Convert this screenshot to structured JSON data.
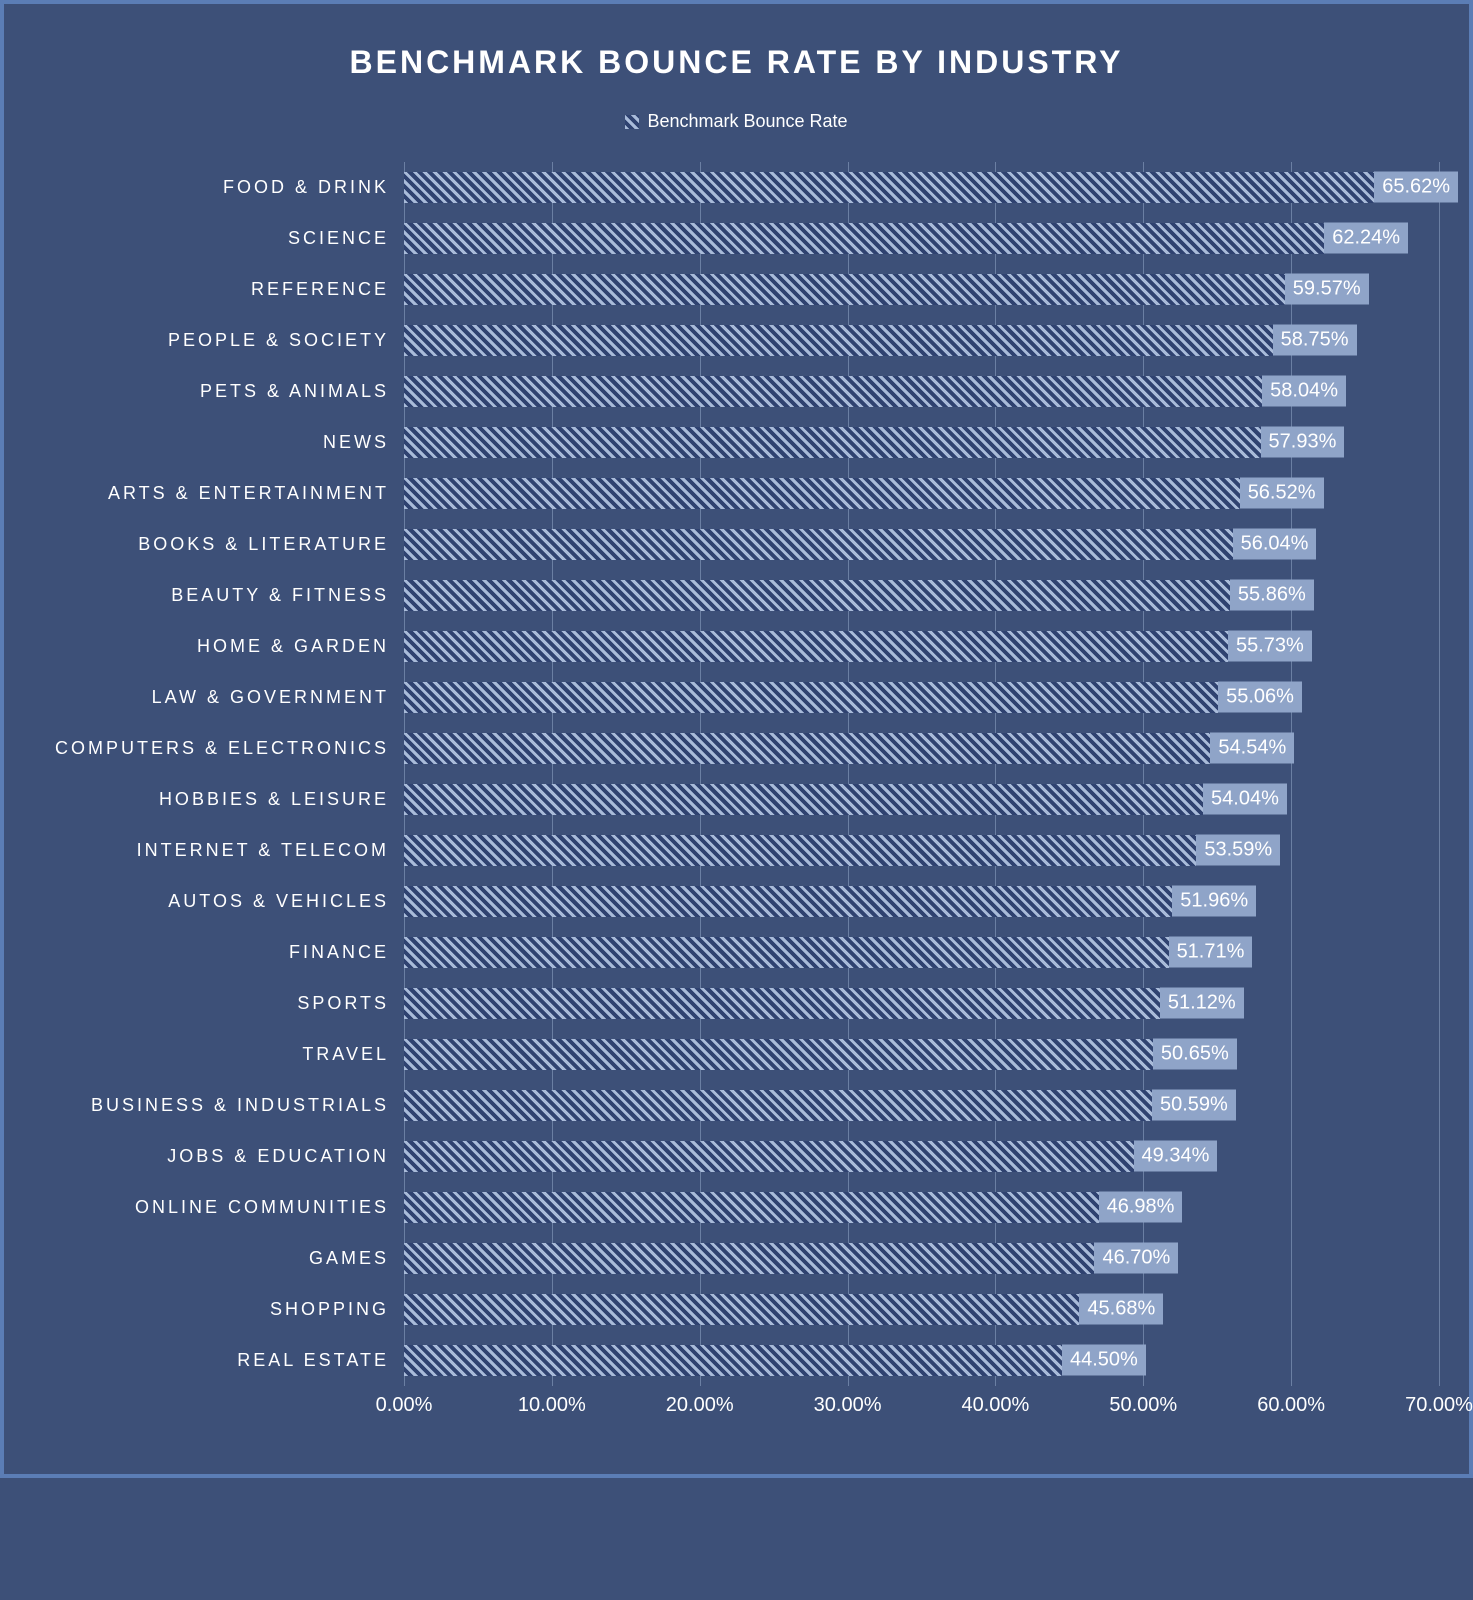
{
  "chart": {
    "type": "bar-horizontal",
    "title": "BENCHMARK BOUNCE RATE BY INDUSTRY",
    "title_fontsize": 32,
    "title_color": "#ffffff",
    "background_color": "#3d5078",
    "border_color": "#5b7db5",
    "legend_label": "Benchmark Bounce Rate",
    "legend_fontsize": 18,
    "label_fontsize": 18,
    "label_color": "#ffffff",
    "value_label_fontsize": 20,
    "value_label_bg": "#8fa4c8",
    "value_label_color": "#ffffff",
    "grid_color": "#6b7fa3",
    "bar_pattern_fg": "#a9bbd9",
    "bar_pattern_bg": "#2f4270",
    "xlim": [
      0,
      70
    ],
    "xtick_step": 10,
    "xticks": [
      "0.00%",
      "10.00%",
      "20.00%",
      "30.00%",
      "40.00%",
      "50.00%",
      "60.00%",
      "70.00%"
    ],
    "categories": [
      {
        "label": "FOOD & DRINK",
        "value": 65.62,
        "value_label": "65.62%"
      },
      {
        "label": "SCIENCE",
        "value": 62.24,
        "value_label": "62.24%"
      },
      {
        "label": "REFERENCE",
        "value": 59.57,
        "value_label": "59.57%"
      },
      {
        "label": "PEOPLE & SOCIETY",
        "value": 58.75,
        "value_label": "58.75%"
      },
      {
        "label": "PETS & ANIMALS",
        "value": 58.04,
        "value_label": "58.04%"
      },
      {
        "label": "NEWS",
        "value": 57.93,
        "value_label": "57.93%"
      },
      {
        "label": "ARTS & ENTERTAINMENT",
        "value": 56.52,
        "value_label": "56.52%"
      },
      {
        "label": "BOOKS & LITERATURE",
        "value": 56.04,
        "value_label": "56.04%"
      },
      {
        "label": "BEAUTY & FITNESS",
        "value": 55.86,
        "value_label": "55.86%"
      },
      {
        "label": "HOME & GARDEN",
        "value": 55.73,
        "value_label": "55.73%"
      },
      {
        "label": "LAW & GOVERNMENT",
        "value": 55.06,
        "value_label": "55.06%"
      },
      {
        "label": "COMPUTERS & ELECTRONICS",
        "value": 54.54,
        "value_label": "54.54%"
      },
      {
        "label": "HOBBIES & LEISURE",
        "value": 54.04,
        "value_label": "54.04%"
      },
      {
        "label": "INTERNET & TELECOM",
        "value": 53.59,
        "value_label": "53.59%"
      },
      {
        "label": "AUTOS & VEHICLES",
        "value": 51.96,
        "value_label": "51.96%"
      },
      {
        "label": "FINANCE",
        "value": 51.71,
        "value_label": "51.71%"
      },
      {
        "label": "SPORTS",
        "value": 51.12,
        "value_label": "51.12%"
      },
      {
        "label": "TRAVEL",
        "value": 50.65,
        "value_label": "50.65%"
      },
      {
        "label": "BUSINESS & INDUSTRIALS",
        "value": 50.59,
        "value_label": "50.59%"
      },
      {
        "label": "JOBS & EDUCATION",
        "value": 49.34,
        "value_label": "49.34%"
      },
      {
        "label": "ONLINE COMMUNITIES",
        "value": 46.98,
        "value_label": "46.98%"
      },
      {
        "label": "GAMES",
        "value": 46.7,
        "value_label": "46.70%"
      },
      {
        "label": "SHOPPING",
        "value": 45.68,
        "value_label": "45.68%"
      },
      {
        "label": "REAL ESTATE",
        "value": 44.5,
        "value_label": "44.50%"
      }
    ]
  }
}
